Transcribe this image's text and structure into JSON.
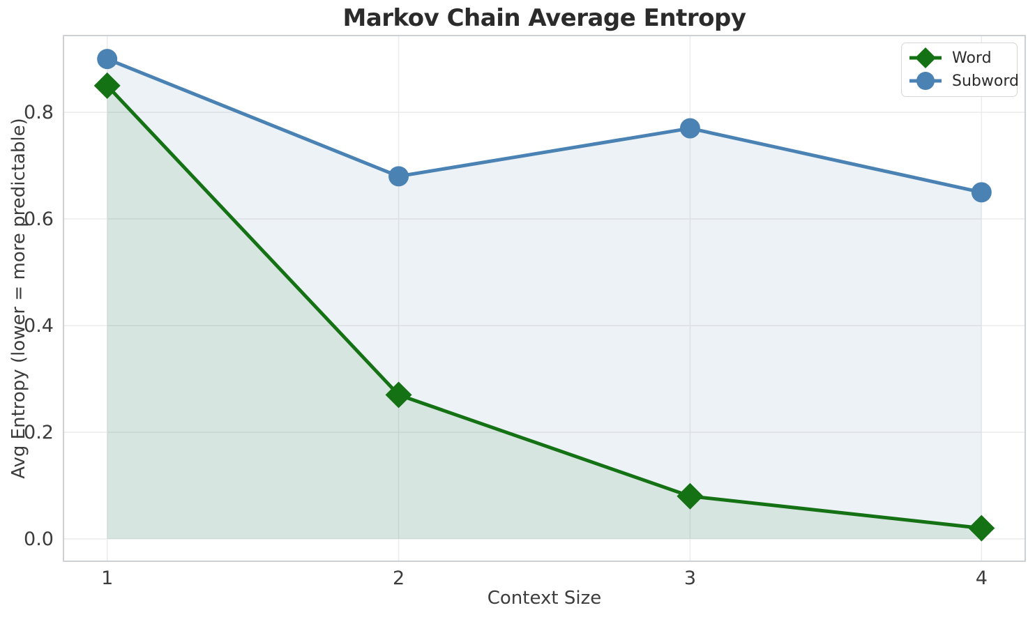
{
  "figure": {
    "title": "Markov Chain Average Entropy",
    "xlabel": "Context Size",
    "ylabel": "Avg Entropy (lower = more predictable)"
  },
  "chart_data": {
    "type": "line",
    "title": "Markov Chain Average Entropy",
    "xlabel": "Context Size",
    "ylabel": "Avg Entropy (lower = more predictable)",
    "x": [
      1,
      2,
      3,
      4
    ],
    "series": [
      {
        "name": "Word",
        "values": [
          0.85,
          0.27,
          0.08,
          0.02
        ],
        "color": "#147114",
        "marker": "diamond",
        "line_width": 5,
        "fill_to_zero": true
      },
      {
        "name": "Subword",
        "values": [
          0.9,
          0.68,
          0.77,
          0.65
        ],
        "color": "#4a82b4",
        "marker": "circle",
        "line_width": 5,
        "fill_to_zero": true
      }
    ],
    "fill_alpha": 0.1,
    "xticks": {
      "values": [
        1,
        2,
        3,
        4
      ],
      "labels": [
        "1",
        "2",
        "3",
        "4"
      ]
    },
    "yticks": {
      "values": [
        0.0,
        0.2,
        0.4,
        0.6,
        0.8
      ],
      "labels": [
        "0.0",
        "0.2",
        "0.4",
        "0.6",
        "0.8"
      ]
    },
    "xlim": [
      0.85,
      4.15
    ],
    "ylim": [
      -0.042,
      0.944
    ],
    "grid": true,
    "legend_position": "upper right"
  },
  "style": {
    "background": "#ffffff",
    "grid_color": "#ebebeb",
    "spine_color": "#c9cccf",
    "tick_text_color": "#3c3c3c",
    "title_color": "#2b2b2b"
  }
}
